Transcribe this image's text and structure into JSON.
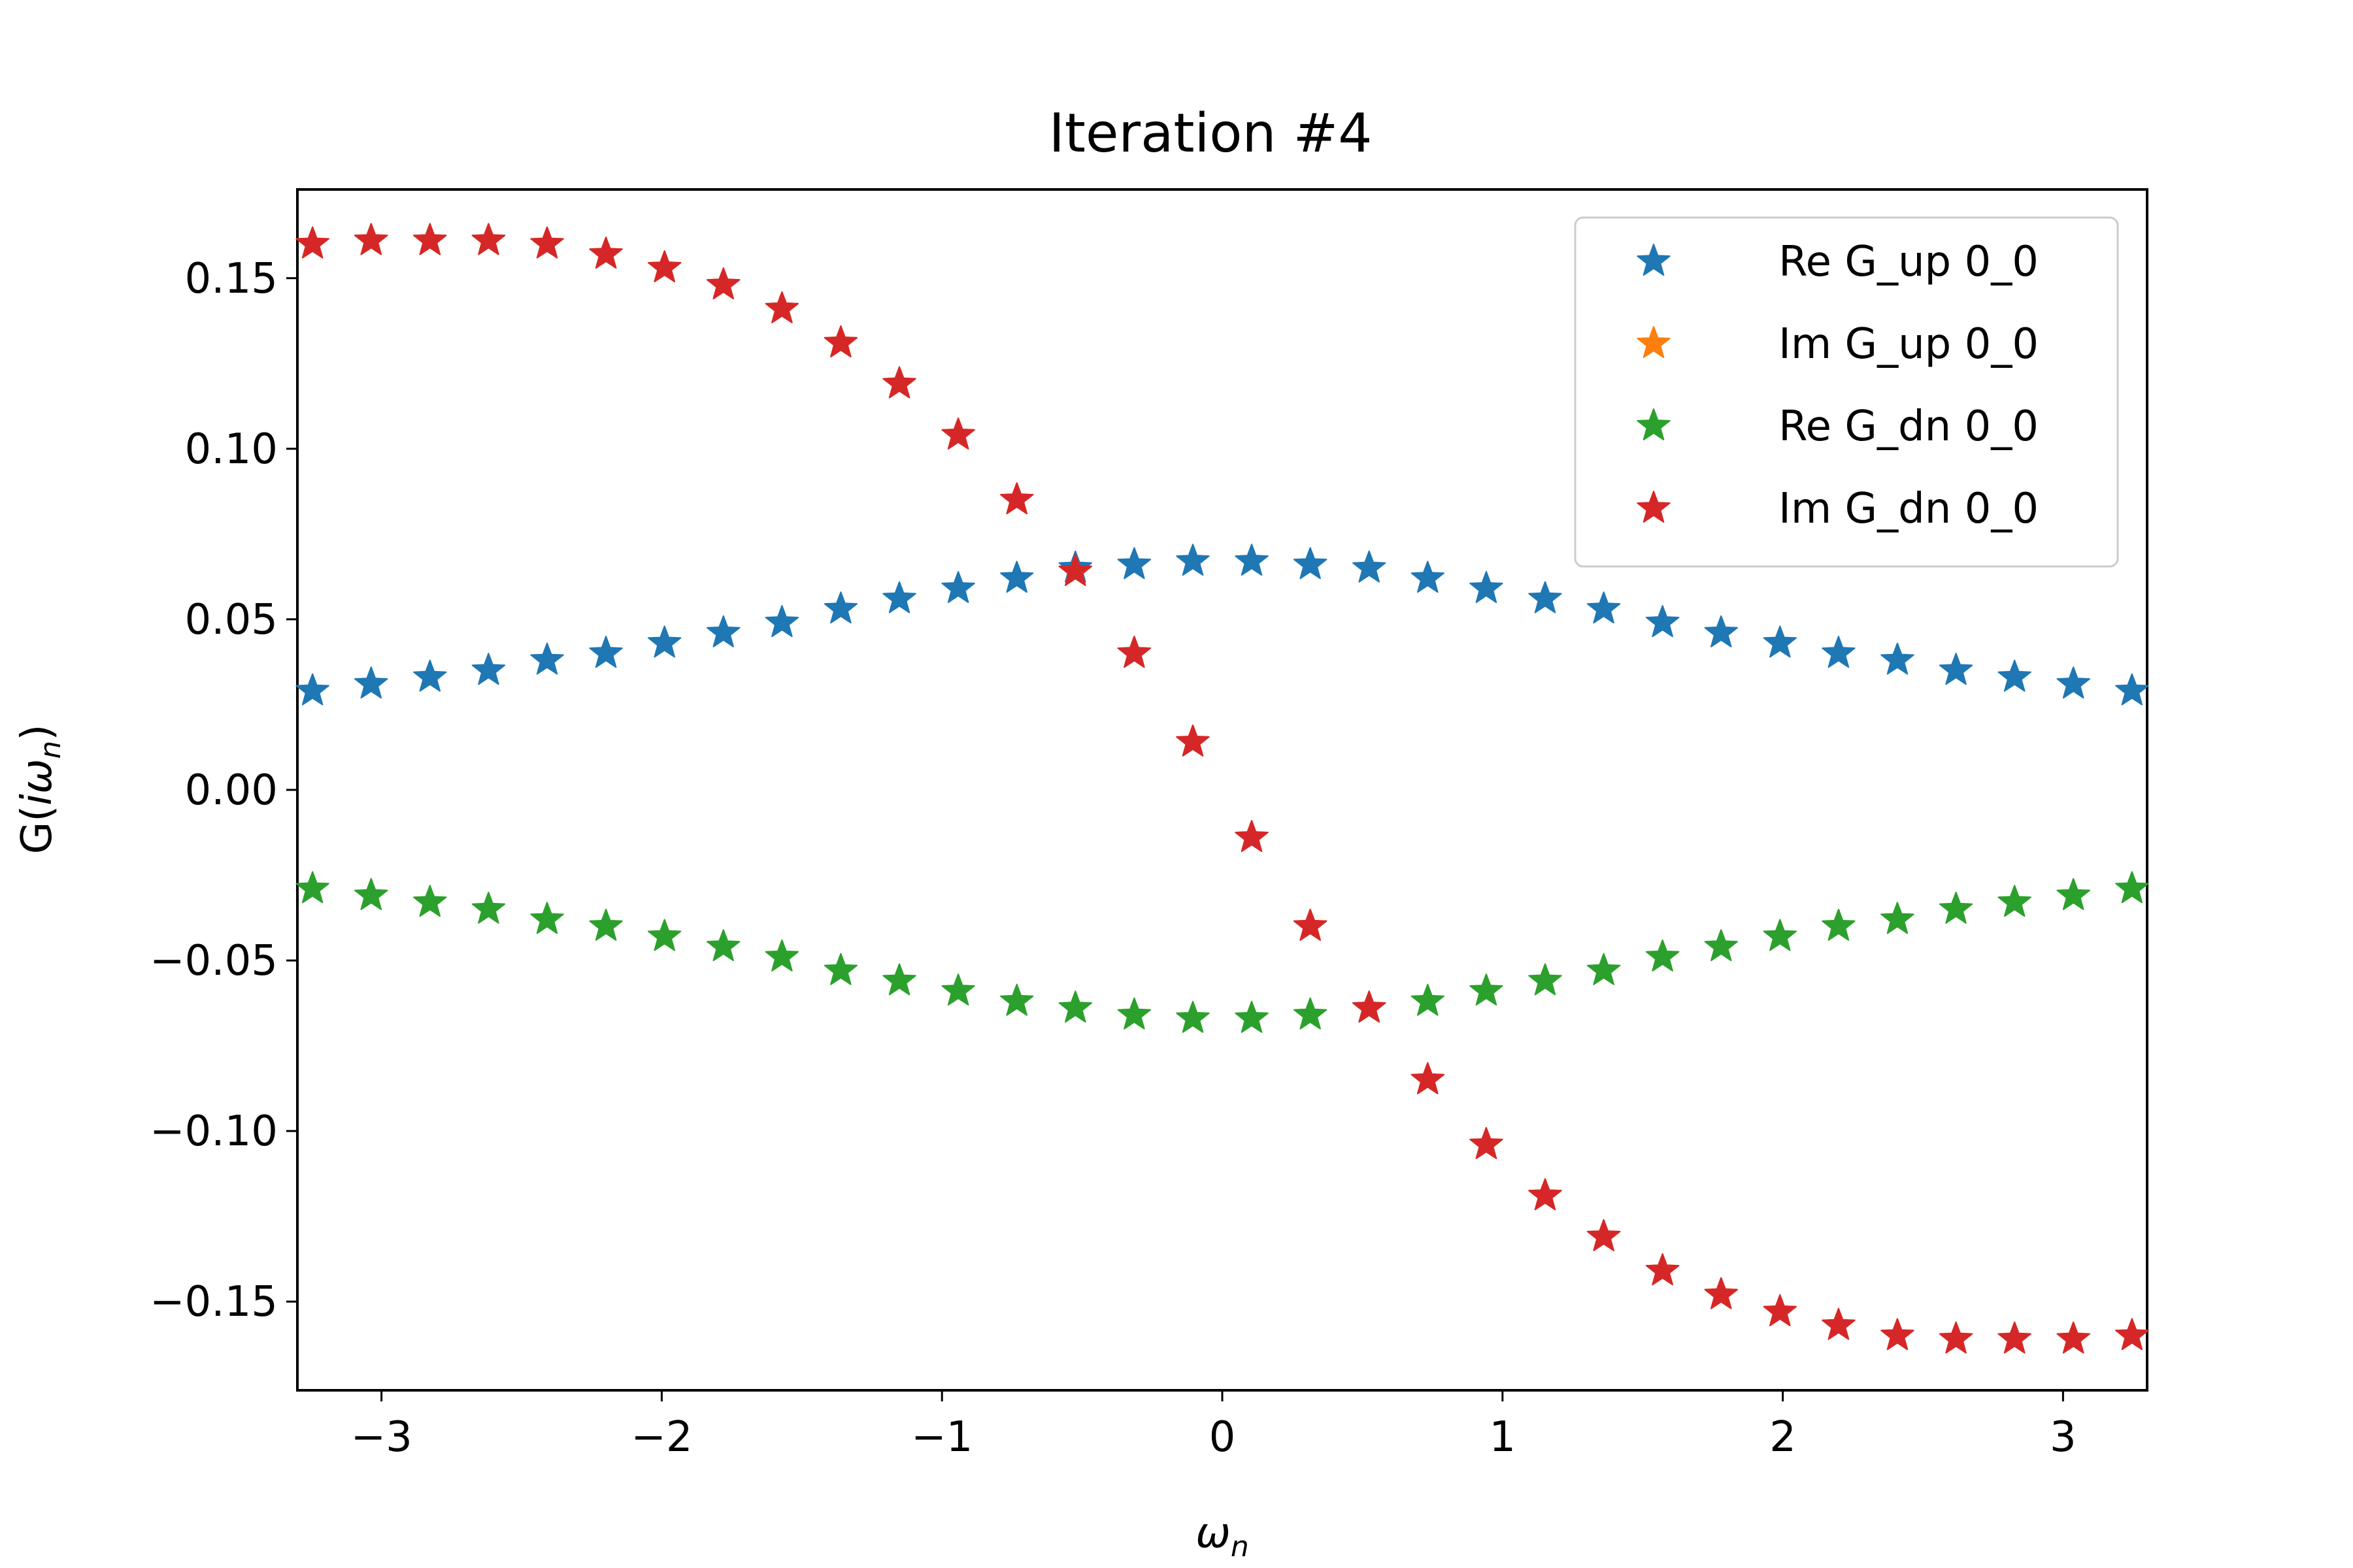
{
  "chart_data": {
    "type": "scatter",
    "title": "Iteration #4",
    "xlabel": "ω_n",
    "ylabel": "G(iω_n)",
    "xlim": [
      -3.3,
      3.3
    ],
    "ylim": [
      -0.176,
      0.176
    ],
    "x_ticks": [
      -3,
      -2,
      -1,
      0,
      1,
      2,
      3
    ],
    "x_tick_labels": [
      "−3",
      "−2",
      "−1",
      "0",
      "1",
      "2",
      "3"
    ],
    "y_ticks": [
      0.15,
      0.1,
      0.05,
      0.0,
      -0.05,
      -0.1,
      -0.15
    ],
    "y_tick_labels": [
      "0.15",
      "0.10",
      "0.05",
      "0.00",
      "−0.05",
      "−0.10",
      "−0.15"
    ],
    "legend_position": "top-right",
    "marker": "star",
    "x": [
      -3.246,
      -3.037,
      -2.827,
      -2.618,
      -2.409,
      -2.199,
      -1.99,
      -1.78,
      -1.571,
      -1.361,
      -1.152,
      -0.942,
      -0.733,
      -0.524,
      -0.314,
      -0.105,
      0.105,
      0.314,
      0.524,
      0.733,
      0.942,
      1.152,
      1.361,
      1.571,
      1.78,
      1.99,
      2.199,
      2.409,
      2.618,
      2.827,
      3.037,
      3.246
    ],
    "series": [
      {
        "name": "Re G_up 0_0",
        "color": "#1f77b4",
        "values": [
          0.029,
          0.031,
          0.033,
          0.035,
          0.038,
          0.04,
          0.043,
          0.046,
          0.049,
          0.053,
          0.056,
          0.059,
          0.062,
          0.065,
          0.066,
          0.067,
          0.067,
          0.066,
          0.065,
          0.062,
          0.059,
          0.056,
          0.053,
          0.049,
          0.046,
          0.043,
          0.04,
          0.038,
          0.035,
          0.033,
          0.031,
          0.029
        ]
      },
      {
        "name": "Im G_up 0_0",
        "color": "#ff7f0e",
        "values": [
          0.16,
          0.161,
          0.161,
          0.161,
          0.16,
          0.157,
          0.153,
          0.148,
          0.141,
          0.131,
          0.119,
          0.104,
          0.085,
          0.064,
          0.04,
          0.014,
          -0.014,
          -0.04,
          -0.064,
          -0.085,
          -0.104,
          -0.119,
          -0.131,
          -0.141,
          -0.148,
          -0.153,
          -0.157,
          -0.16,
          -0.161,
          -0.161,
          -0.161,
          -0.16
        ]
      },
      {
        "name": "Re G_dn 0_0",
        "color": "#2ca02c",
        "values": [
          -0.029,
          -0.031,
          -0.033,
          -0.035,
          -0.038,
          -0.04,
          -0.043,
          -0.046,
          -0.049,
          -0.053,
          -0.056,
          -0.059,
          -0.062,
          -0.064,
          -0.066,
          -0.067,
          -0.067,
          -0.066,
          -0.064,
          -0.062,
          -0.059,
          -0.056,
          -0.053,
          -0.049,
          -0.046,
          -0.043,
          -0.04,
          -0.038,
          -0.035,
          -0.033,
          -0.031,
          -0.029
        ]
      },
      {
        "name": "Im G_dn 0_0",
        "color": "#d62728",
        "values": [
          0.16,
          0.161,
          0.161,
          0.161,
          0.16,
          0.157,
          0.153,
          0.148,
          0.141,
          0.131,
          0.119,
          0.104,
          0.085,
          0.064,
          0.04,
          0.014,
          -0.014,
          -0.04,
          -0.064,
          -0.085,
          -0.104,
          -0.119,
          -0.131,
          -0.141,
          -0.148,
          -0.153,
          -0.157,
          -0.16,
          -0.161,
          -0.161,
          -0.161,
          -0.16
        ]
      }
    ]
  }
}
